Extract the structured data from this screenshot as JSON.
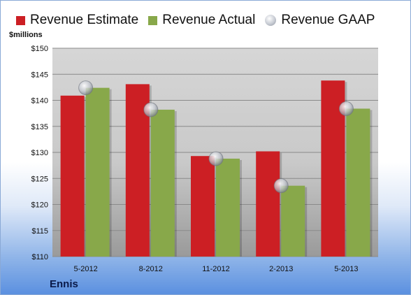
{
  "colors": {
    "estimate": "#cc1f24",
    "actual": "#88a84a",
    "gaap": "#c4c8d0"
  },
  "legend": {
    "estimate": "Revenue Estimate",
    "actual": "Revenue Actual",
    "gaap": "Revenue GAAP"
  },
  "company": "Ennis",
  "chart_data": {
    "type": "bar",
    "ylabel": "$millions",
    "ylim": [
      110,
      150
    ],
    "yticks": [
      "$110",
      "$115",
      "$120",
      "$125",
      "$130",
      "$135",
      "$140",
      "$145",
      "$150"
    ],
    "categories": [
      "5-2012",
      "8-2012",
      "11-2012",
      "2-2013",
      "5-2013"
    ],
    "series": [
      {
        "name": "Revenue Estimate",
        "type": "bar",
        "values": [
          140.9,
          143.1,
          129.3,
          130.2,
          143.8
        ]
      },
      {
        "name": "Revenue Actual",
        "type": "bar",
        "values": [
          142.4,
          138.2,
          128.8,
          123.6,
          138.4
        ]
      },
      {
        "name": "Revenue GAAP",
        "type": "scatter",
        "values": [
          142.4,
          138.2,
          128.8,
          123.6,
          138.4
        ]
      }
    ],
    "grid": true,
    "legend_position": "top"
  }
}
